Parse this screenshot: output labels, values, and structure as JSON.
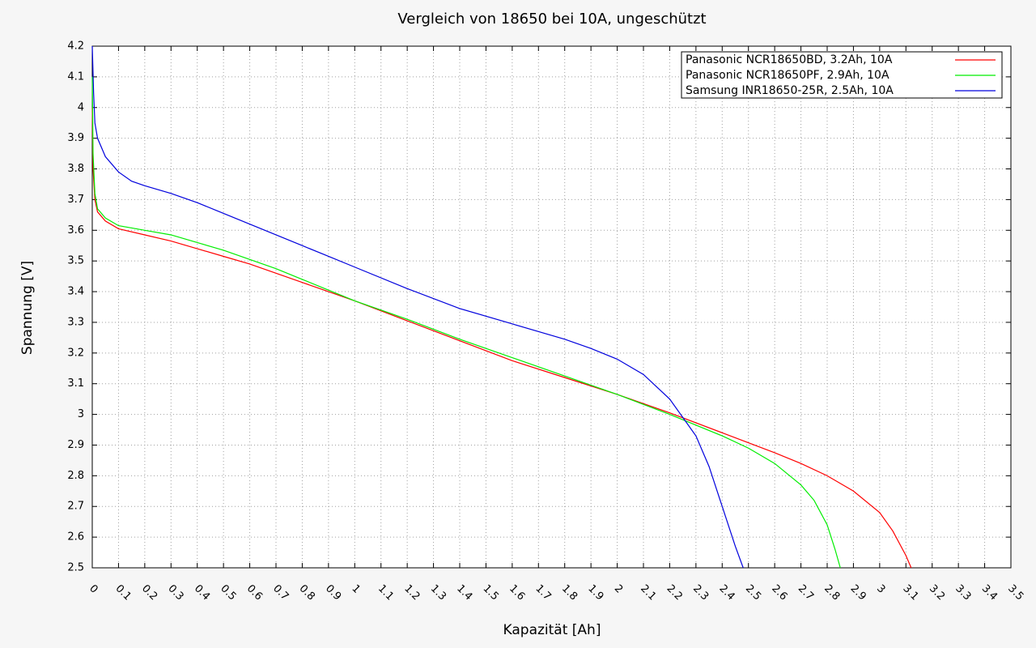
{
  "chart_data": {
    "type": "line",
    "title": "Vergleich von 18650 bei 10A, ungeschützt",
    "x_label": "Kapazität [Ah]",
    "y_label": "Spannung [V]",
    "xlim": [
      0,
      3.5
    ],
    "ylim": [
      2.5,
      4.2
    ],
    "xticks": [
      0,
      0.1,
      0.2,
      0.3,
      0.4,
      0.5,
      0.6,
      0.7,
      0.8,
      0.9,
      1,
      1.1,
      1.2,
      1.3,
      1.4,
      1.5,
      1.6,
      1.7,
      1.8,
      1.9,
      2,
      2.1,
      2.2,
      2.3,
      2.4,
      2.5,
      2.6,
      2.7,
      2.8,
      2.9,
      3,
      3.1,
      3.2,
      3.3,
      3.4,
      3.5
    ],
    "yticks": [
      2.5,
      2.6,
      2.7,
      2.8,
      2.9,
      3,
      3.1,
      3.2,
      3.3,
      3.4,
      3.5,
      3.6,
      3.7,
      3.8,
      3.9,
      4,
      4.1,
      4.2
    ],
    "grid": true,
    "legend": "top-right",
    "series": [
      {
        "name": "Panasonic NCR18650BD, 3.2Ah, 10A",
        "color": "#ff0000",
        "x": [
          0,
          0.003,
          0.01,
          0.02,
          0.05,
          0.1,
          0.2,
          0.3,
          0.4,
          0.5,
          0.6,
          0.7,
          0.8,
          0.9,
          1.0,
          1.2,
          1.4,
          1.6,
          1.8,
          2.0,
          2.2,
          2.4,
          2.6,
          2.7,
          2.8,
          2.9,
          3.0,
          3.05,
          3.1,
          3.12
        ],
        "values": [
          4.0,
          3.8,
          3.7,
          3.66,
          3.63,
          3.605,
          3.585,
          3.565,
          3.54,
          3.515,
          3.49,
          3.46,
          3.43,
          3.4,
          3.37,
          3.305,
          3.24,
          3.175,
          3.12,
          3.065,
          3.005,
          2.94,
          2.875,
          2.84,
          2.8,
          2.75,
          2.68,
          2.62,
          2.54,
          2.5
        ]
      },
      {
        "name": "Panasonic NCR18650PF, 2.9Ah, 10A",
        "color": "#00ee00",
        "x": [
          0,
          0.003,
          0.01,
          0.02,
          0.05,
          0.1,
          0.2,
          0.3,
          0.4,
          0.5,
          0.6,
          0.7,
          0.8,
          0.9,
          1.0,
          1.2,
          1.4,
          1.6,
          1.8,
          2.0,
          2.2,
          2.4,
          2.5,
          2.6,
          2.7,
          2.75,
          2.8,
          2.83,
          2.85
        ],
        "values": [
          4.1,
          3.85,
          3.72,
          3.67,
          3.64,
          3.615,
          3.6,
          3.585,
          3.56,
          3.535,
          3.505,
          3.475,
          3.44,
          3.405,
          3.37,
          3.31,
          3.245,
          3.185,
          3.125,
          3.065,
          3.0,
          2.93,
          2.89,
          2.84,
          2.77,
          2.72,
          2.64,
          2.56,
          2.5
        ]
      },
      {
        "name": "Samsung INR18650-25R, 2.5Ah, 10A",
        "color": "#0000dd",
        "x": [
          0,
          0.005,
          0.01,
          0.02,
          0.05,
          0.1,
          0.15,
          0.2,
          0.3,
          0.4,
          0.5,
          0.6,
          0.7,
          0.8,
          0.9,
          1.0,
          1.2,
          1.4,
          1.6,
          1.8,
          1.9,
          2.0,
          2.1,
          2.2,
          2.25,
          2.3,
          2.35,
          2.4,
          2.45,
          2.48
        ],
        "values": [
          4.2,
          4.05,
          3.95,
          3.9,
          3.84,
          3.79,
          3.76,
          3.745,
          3.72,
          3.69,
          3.655,
          3.62,
          3.585,
          3.55,
          3.515,
          3.48,
          3.41,
          3.345,
          3.295,
          3.245,
          3.215,
          3.18,
          3.13,
          3.05,
          2.99,
          2.93,
          2.83,
          2.7,
          2.57,
          2.5
        ]
      }
    ]
  }
}
